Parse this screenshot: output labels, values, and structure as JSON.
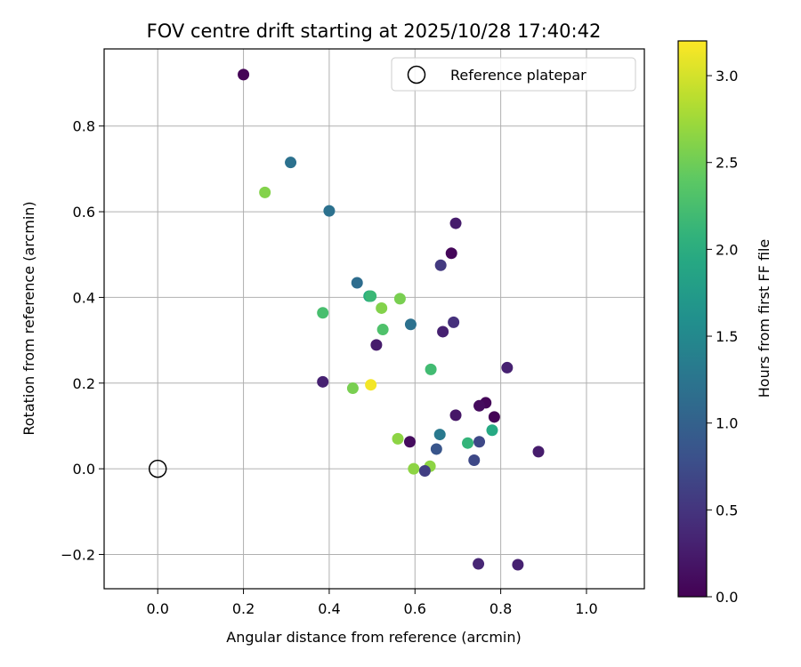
{
  "chart_data": {
    "type": "scatter",
    "title": "FOV centre drift starting at 2025/10/28 17:40:42",
    "xlabel": "Angular distance from reference (arcmin)",
    "ylabel": "Rotation from reference (arcmin)",
    "xlim": [
      -0.125,
      1.135
    ],
    "ylim": [
      -0.28,
      0.98
    ],
    "xticks": [
      0.0,
      0.2,
      0.4,
      0.6,
      0.8,
      1.0
    ],
    "xtick_labels": [
      "0.0",
      "0.2",
      "0.4",
      "0.6",
      "0.8",
      "1.0"
    ],
    "yticks": [
      -0.2,
      0.0,
      0.2,
      0.4,
      0.6,
      0.8
    ],
    "ytick_labels": [
      "−0.2",
      "0.0",
      "0.2",
      "0.4",
      "0.6",
      "0.8"
    ],
    "grid": true,
    "legend": {
      "position": "top-right",
      "entries": [
        {
          "label": "Reference platepar",
          "marker": "open-circle"
        }
      ]
    },
    "reference_point": {
      "x": 0.0,
      "y": 0.0
    },
    "colorbar": {
      "label": "Hours from first FF file",
      "colormap": "viridis",
      "range": [
        0.0,
        3.2
      ],
      "ticks": [
        0.0,
        0.5,
        1.0,
        1.5,
        2.0,
        2.5,
        3.0
      ],
      "tick_labels": [
        "0.0",
        "0.5",
        "1.0",
        "1.5",
        "2.0",
        "2.5",
        "3.0"
      ]
    },
    "points": [
      {
        "x": 0.2,
        "y": 0.92,
        "hours": 0.02
      },
      {
        "x": 0.31,
        "y": 0.715,
        "hours": 1.2
      },
      {
        "x": 0.25,
        "y": 0.645,
        "hours": 2.6
      },
      {
        "x": 0.4,
        "y": 0.602,
        "hours": 1.2
      },
      {
        "x": 0.695,
        "y": 0.573,
        "hours": 0.25
      },
      {
        "x": 0.685,
        "y": 0.503,
        "hours": 0.05
      },
      {
        "x": 0.66,
        "y": 0.475,
        "hours": 0.55
      },
      {
        "x": 0.465,
        "y": 0.434,
        "hours": 1.15
      },
      {
        "x": 0.493,
        "y": 0.403,
        "hours": 2.0
      },
      {
        "x": 0.497,
        "y": 0.403,
        "hours": 2.15
      },
      {
        "x": 0.565,
        "y": 0.397,
        "hours": 2.55
      },
      {
        "x": 0.522,
        "y": 0.375,
        "hours": 2.6
      },
      {
        "x": 0.385,
        "y": 0.364,
        "hours": 2.25
      },
      {
        "x": 0.69,
        "y": 0.342,
        "hours": 0.45
      },
      {
        "x": 0.59,
        "y": 0.337,
        "hours": 1.2
      },
      {
        "x": 0.525,
        "y": 0.325,
        "hours": 2.3
      },
      {
        "x": 0.665,
        "y": 0.32,
        "hours": 0.3
      },
      {
        "x": 0.51,
        "y": 0.289,
        "hours": 0.25
      },
      {
        "x": 0.815,
        "y": 0.236,
        "hours": 0.3
      },
      {
        "x": 0.637,
        "y": 0.232,
        "hours": 2.2
      },
      {
        "x": 0.385,
        "y": 0.203,
        "hours": 0.3
      },
      {
        "x": 0.497,
        "y": 0.196,
        "hours": 3.15
      },
      {
        "x": 0.455,
        "y": 0.188,
        "hours": 2.55
      },
      {
        "x": 0.765,
        "y": 0.154,
        "hours": 0.05
      },
      {
        "x": 0.75,
        "y": 0.147,
        "hours": 0.1
      },
      {
        "x": 0.695,
        "y": 0.125,
        "hours": 0.2
      },
      {
        "x": 0.785,
        "y": 0.121,
        "hours": 0.02
      },
      {
        "x": 0.78,
        "y": 0.09,
        "hours": 1.95
      },
      {
        "x": 0.658,
        "y": 0.08,
        "hours": 1.3
      },
      {
        "x": 0.56,
        "y": 0.07,
        "hours": 2.65
      },
      {
        "x": 0.588,
        "y": 0.063,
        "hours": 0.1
      },
      {
        "x": 0.75,
        "y": 0.063,
        "hours": 0.7
      },
      {
        "x": 0.723,
        "y": 0.06,
        "hours": 2.1
      },
      {
        "x": 0.65,
        "y": 0.046,
        "hours": 0.85
      },
      {
        "x": 0.888,
        "y": 0.04,
        "hours": 0.25
      },
      {
        "x": 0.738,
        "y": 0.02,
        "hours": 0.7
      },
      {
        "x": 0.635,
        "y": 0.006,
        "hours": 2.65
      },
      {
        "x": 0.597,
        "y": 0.0,
        "hours": 2.65
      },
      {
        "x": 0.623,
        "y": -0.005,
        "hours": 0.6
      },
      {
        "x": 0.748,
        "y": -0.222,
        "hours": 0.35
      },
      {
        "x": 0.84,
        "y": -0.224,
        "hours": 0.3
      }
    ]
  }
}
